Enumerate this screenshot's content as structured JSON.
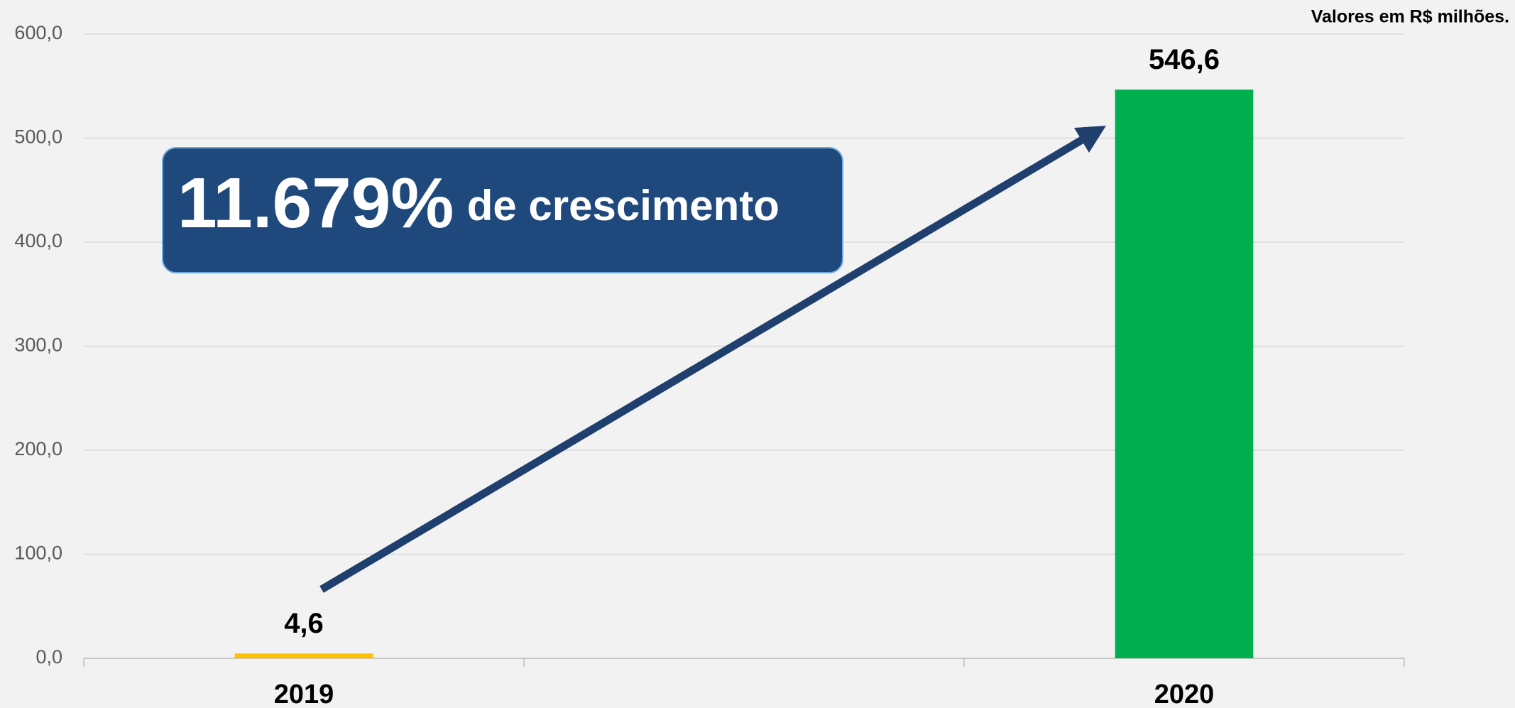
{
  "chart_data": {
    "type": "bar",
    "note": "Valores em R$ milhões.",
    "annotation": {
      "value_text": "11.679%",
      "text": "de crescimento"
    },
    "categories": [
      "2019",
      null,
      "2020"
    ],
    "values": [
      4.6,
      null,
      546.6
    ],
    "value_labels": [
      "4,6",
      null,
      "546,6"
    ],
    "colors": [
      "#ffc000",
      null,
      "#00b050"
    ],
    "ylim": [
      0,
      600
    ],
    "yticks": [
      {
        "value": 0,
        "label": "0,0"
      },
      {
        "value": 100,
        "label": "100,0"
      },
      {
        "value": 200,
        "label": "200,0"
      },
      {
        "value": 300,
        "label": "300,0"
      },
      {
        "value": 400,
        "label": "400,0"
      },
      {
        "value": 500,
        "label": "500,0"
      },
      {
        "value": 600,
        "label": "600,0"
      }
    ],
    "grid": true
  }
}
